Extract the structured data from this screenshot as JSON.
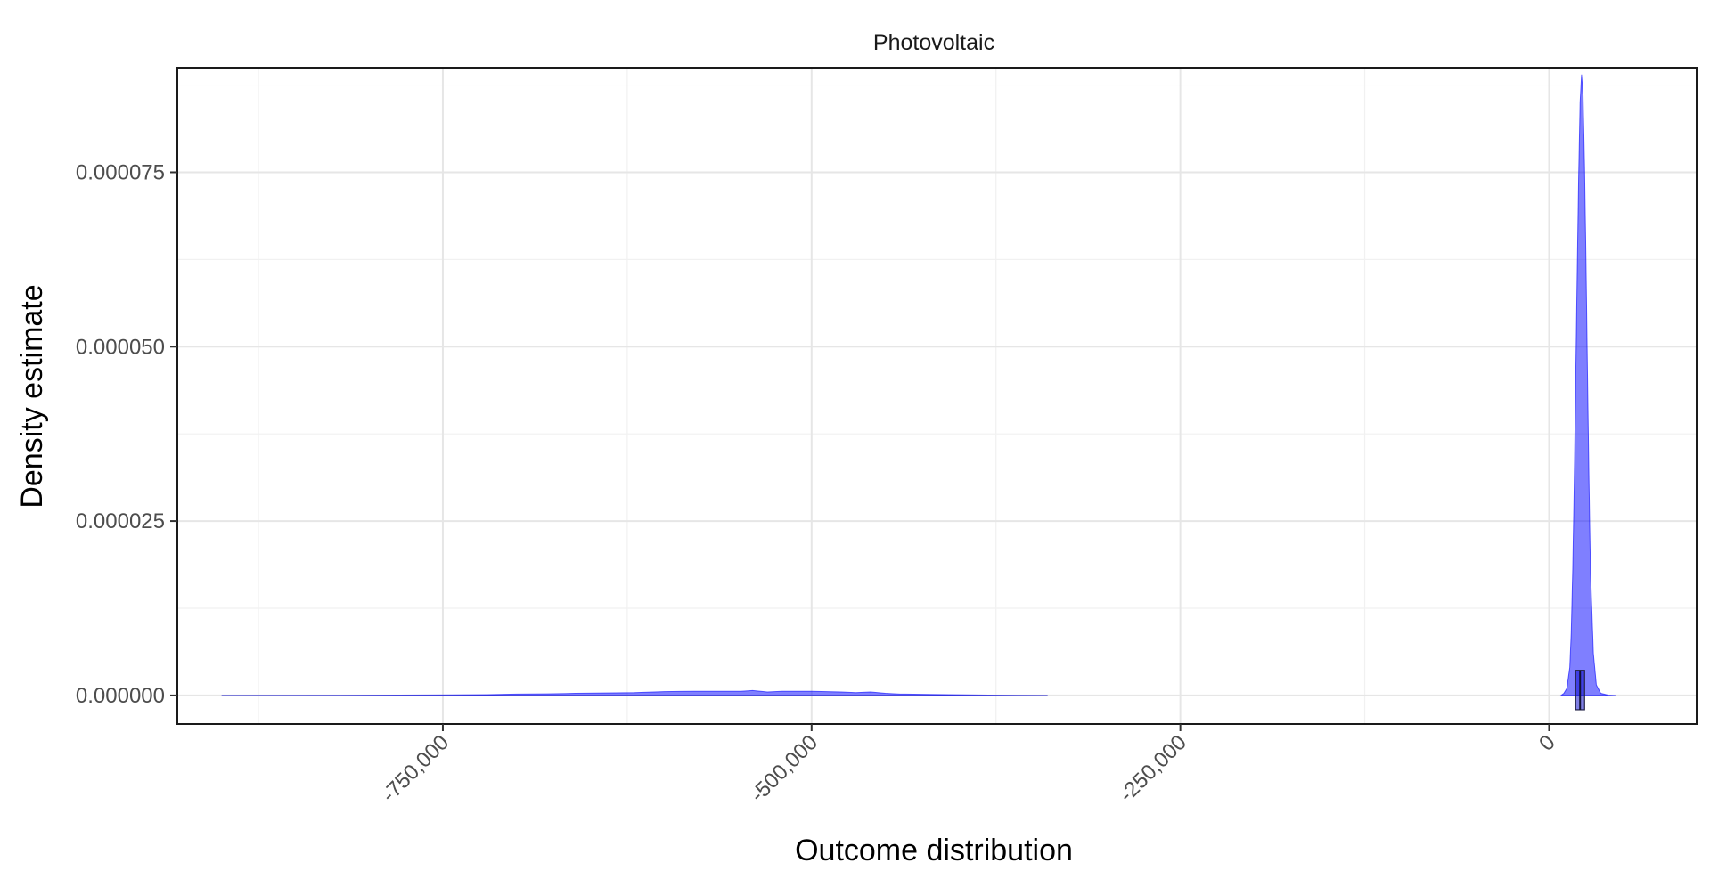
{
  "chart_data": {
    "type": "area",
    "title": "Photovoltaic",
    "xlabel": "Outcome distribution",
    "ylabel": "Density estimate",
    "xlim": [
      -930000,
      100000
    ],
    "ylim": [
      -4.1e-06,
      9e-05
    ],
    "x_ticks": [
      -750000,
      -500000,
      -250000,
      0
    ],
    "x_tick_labels": [
      "-750,000",
      "-500,000",
      "-250,000",
      "0"
    ],
    "y_ticks": [
      0,
      2.5e-05,
      5e-05,
      7.5e-05
    ],
    "y_tick_labels": [
      "0.000000",
      "0.000025",
      "0.000050",
      "0.000075"
    ],
    "grid": true,
    "series": [
      {
        "color": "#0000ff",
        "fill_opacity": 0.5,
        "x": [
          -900000,
          -820000,
          -760000,
          -720000,
          -700000,
          -680000,
          -660000,
          -640000,
          -620000,
          -600000,
          -580000,
          -560000,
          -548000,
          -540000,
          -530000,
          -520000,
          -500000,
          -480000,
          -470000,
          -460000,
          -450000,
          -440000,
          -420000,
          -400000,
          -380000,
          -360000,
          -340000
        ],
        "y": [
          0,
          2e-08,
          6e-08,
          1.2e-07,
          2e-07,
          2.2e-07,
          3e-07,
          3.5e-07,
          4e-07,
          5.5e-07,
          6e-07,
          6e-07,
          6e-07,
          7e-07,
          5e-07,
          6e-07,
          6e-07,
          5e-07,
          4e-07,
          5e-07,
          3e-07,
          2e-07,
          1.5e-07,
          1e-07,
          5e-08,
          2e-08,
          0
        ]
      },
      {
        "color": "#0000ff",
        "fill_opacity": 0.5,
        "x": [
          8000,
          10000,
          12000,
          14000,
          15000,
          16000,
          17000,
          18000,
          19000,
          20000,
          21000,
          22000,
          23000,
          24000,
          25000,
          26000,
          27000,
          28000,
          30000,
          32000,
          35000,
          40000,
          45000
        ],
        "y": [
          0,
          3e-07,
          1e-06,
          4e-06,
          9e-06,
          1.8e-05,
          3e-05,
          4.5e-05,
          6e-05,
          7.4e-05,
          8.5e-05,
          8.9e-05,
          8.6e-05,
          7.6e-05,
          6.2e-05,
          4.6e-05,
          3.1e-05,
          1.8e-05,
          6e-06,
          1.5e-06,
          3e-07,
          5e-08,
          0
        ]
      }
    ],
    "boxplot": {
      "q1": 18000,
      "median": 21000,
      "q3": 24000,
      "box_color": "#0000cc",
      "box_fill_opacity": 0.5
    }
  }
}
